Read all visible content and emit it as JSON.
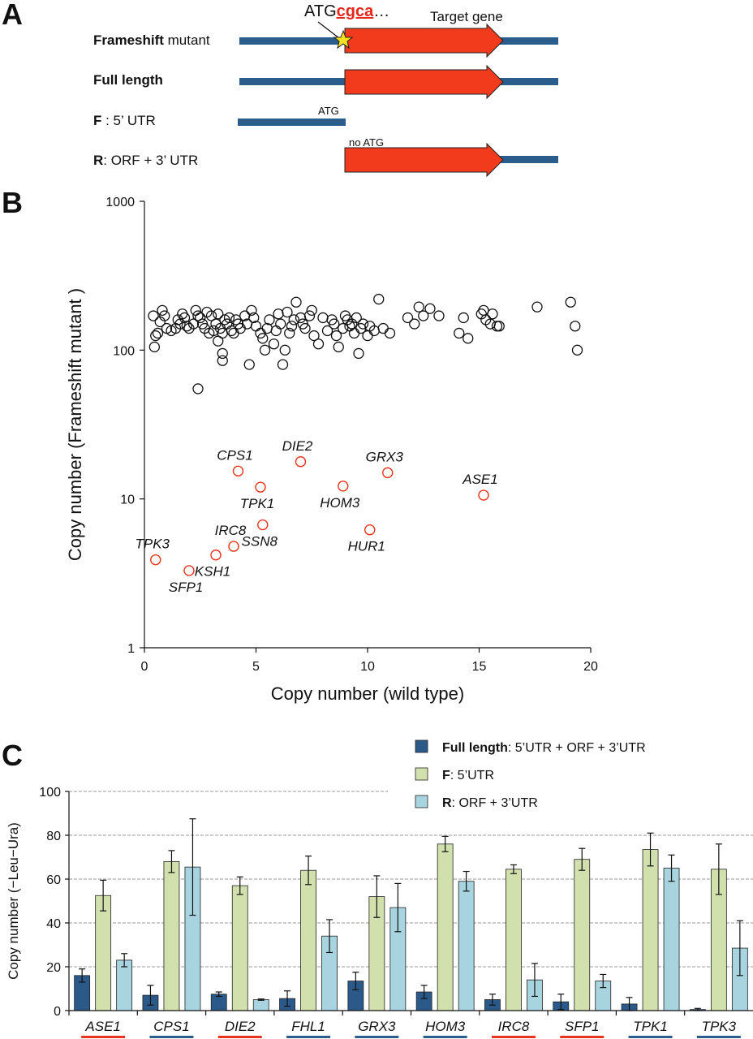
{
  "panel_a": {
    "letter": "A",
    "rows": [
      {
        "bold": "Frameshift",
        "rest": " mutant"
      },
      {
        "bold": "Full length",
        "rest": ""
      },
      {
        "bold": "F",
        "rest": " : 5’ UTR"
      },
      {
        "bold": "R",
        "rest": ": ORF + 3’ UTR"
      }
    ],
    "atg_prefix": "ATG",
    "atg_mut": "cgca",
    "atg_suffix": "…",
    "target_gene": "Target gene",
    "atg_small": "ATG",
    "no_atg": "no ATG",
    "colors": {
      "utr": "#2b5d8c",
      "orf": "#f23a1c",
      "star": "#f7e01d"
    }
  },
  "chart_data": [
    {
      "type": "scatter",
      "panel": "B",
      "xlabel": "Copy number (wild type)",
      "ylabel": "Copy number (Frameshift mutant )",
      "xlim": [
        0,
        20
      ],
      "ylim": [
        1,
        1000
      ],
      "yscale": "log",
      "xticks": [
        "0",
        "5",
        "10",
        "15",
        "20"
      ],
      "yticks": [
        "1",
        "10",
        "100",
        "1000"
      ],
      "background_points": [
        [
          0.4,
          170
        ],
        [
          0.5,
          125
        ],
        [
          0.45,
          105
        ],
        [
          0.7,
          155
        ],
        [
          0.8,
          185
        ],
        [
          0.9,
          170
        ],
        [
          0.6,
          130
        ],
        [
          1.0,
          140
        ],
        [
          1.2,
          135
        ],
        [
          1.4,
          140
        ],
        [
          1.5,
          160
        ],
        [
          1.6,
          150
        ],
        [
          1.7,
          175
        ],
        [
          1.8,
          165
        ],
        [
          1.9,
          145
        ],
        [
          2.0,
          140
        ],
        [
          2.2,
          150
        ],
        [
          2.3,
          185
        ],
        [
          2.4,
          170
        ],
        [
          2.5,
          165
        ],
        [
          2.6,
          150
        ],
        [
          2.7,
          140
        ],
        [
          2.8,
          180
        ],
        [
          2.9,
          130
        ],
        [
          3.0,
          170
        ],
        [
          3.1,
          135
        ],
        [
          3.2,
          150
        ],
        [
          3.3,
          175
        ],
        [
          3.4,
          140
        ],
        [
          3.5,
          130
        ],
        [
          3.6,
          160
        ],
        [
          3.7,
          150
        ],
        [
          3.8,
          165
        ],
        [
          3.9,
          135
        ],
        [
          4.0,
          130
        ],
        [
          4.1,
          160
        ],
        [
          4.2,
          150
        ],
        [
          4.3,
          140
        ],
        [
          3.3,
          115
        ],
        [
          3.5,
          85
        ],
        [
          3.5,
          95
        ],
        [
          2.4,
          55
        ],
        [
          4.5,
          170
        ],
        [
          4.6,
          150
        ],
        [
          4.7,
          80
        ],
        [
          4.8,
          185
        ],
        [
          4.9,
          165
        ],
        [
          5.0,
          145
        ],
        [
          5.2,
          130
        ],
        [
          5.3,
          120
        ],
        [
          5.4,
          100
        ],
        [
          5.5,
          140
        ],
        [
          5.6,
          160
        ],
        [
          5.8,
          110
        ],
        [
          5.9,
          135
        ],
        [
          6.0,
          175
        ],
        [
          6.1,
          150
        ],
        [
          6.2,
          80
        ],
        [
          6.3,
          100
        ],
        [
          6.4,
          180
        ],
        [
          6.5,
          130
        ],
        [
          6.6,
          145
        ],
        [
          6.7,
          160
        ],
        [
          6.8,
          210
        ],
        [
          7.0,
          165
        ],
        [
          7.1,
          150
        ],
        [
          7.2,
          140
        ],
        [
          7.4,
          170
        ],
        [
          7.5,
          185
        ],
        [
          7.6,
          125
        ],
        [
          7.8,
          110
        ],
        [
          8.0,
          165
        ],
        [
          8.2,
          135
        ],
        [
          8.4,
          160
        ],
        [
          8.5,
          150
        ],
        [
          8.6,
          125
        ],
        [
          8.7,
          105
        ],
        [
          8.9,
          140
        ],
        [
          9.0,
          170
        ],
        [
          9.1,
          160
        ],
        [
          9.2,
          145
        ],
        [
          9.3,
          150
        ],
        [
          9.4,
          130
        ],
        [
          9.5,
          165
        ],
        [
          9.6,
          95
        ],
        [
          9.7,
          140
        ],
        [
          9.8,
          150
        ],
        [
          10.0,
          125
        ],
        [
          10.1,
          145
        ],
        [
          10.3,
          135
        ],
        [
          10.5,
          220
        ],
        [
          10.7,
          140
        ],
        [
          11.0,
          130
        ],
        [
          11.8,
          165
        ],
        [
          12.1,
          150
        ],
        [
          12.3,
          195
        ],
        [
          12.5,
          170
        ],
        [
          12.8,
          190
        ],
        [
          13.2,
          170
        ],
        [
          14.1,
          130
        ],
        [
          14.3,
          165
        ],
        [
          14.5,
          120
        ],
        [
          15.1,
          175
        ],
        [
          15.2,
          185
        ],
        [
          15.3,
          160
        ],
        [
          15.5,
          150
        ],
        [
          15.6,
          175
        ],
        [
          15.8,
          145
        ],
        [
          15.9,
          145
        ],
        [
          17.6,
          195
        ],
        [
          19.1,
          210
        ],
        [
          19.3,
          145
        ],
        [
          19.4,
          100
        ]
      ],
      "labeled_points": [
        {
          "name": "CPS1",
          "x": 4.2,
          "y": 15.4,
          "pos": "above"
        },
        {
          "name": "DIE2",
          "x": 7.0,
          "y": 17.8,
          "pos": "above"
        },
        {
          "name": "GRX3",
          "x": 10.9,
          "y": 15.0,
          "pos": "above"
        },
        {
          "name": "TPK1",
          "x": 5.2,
          "y": 12.0,
          "pos": "below"
        },
        {
          "name": "HOM3",
          "x": 8.9,
          "y": 12.2,
          "pos": "below"
        },
        {
          "name": "ASE1",
          "x": 15.2,
          "y": 10.6,
          "pos": "above"
        },
        {
          "name": "IRC8",
          "x": 4.0,
          "y": 4.8,
          "pos": "above"
        },
        {
          "name": "SSN8",
          "x": 5.3,
          "y": 6.7,
          "pos": "below"
        },
        {
          "name": "HUR1",
          "x": 10.1,
          "y": 6.2,
          "pos": "below"
        },
        {
          "name": "TPK3",
          "x": 0.5,
          "y": 3.9,
          "pos": "above"
        },
        {
          "name": "KSH1",
          "x": 3.2,
          "y": 4.2,
          "pos": "below"
        },
        {
          "name": "SFP1",
          "x": 2.0,
          "y": 3.3,
          "pos": "below"
        }
      ],
      "colors": {
        "background": "#111111",
        "labeled": "#e8341c"
      }
    },
    {
      "type": "bar",
      "panel": "C",
      "ylabel": "Copy number (−Leu−Ura)",
      "ylim": [
        0,
        100
      ],
      "yticks": [
        "0",
        "20",
        "40",
        "60",
        "80",
        "100"
      ],
      "categories": [
        "ASE1",
        "CPS1",
        "DIE2",
        "FHL1",
        "GRX3",
        "HOM3",
        "IRC8",
        "SFP1",
        "TPK1",
        "TPK3"
      ],
      "underline_colors": [
        "#e8341c",
        "#2b5d8c",
        "#e8341c",
        "#2b5d8c",
        "#2b5d8c",
        "#2b5d8c",
        "#e8341c",
        "#e8341c",
        "#2b5d8c",
        "#2b5d8c"
      ],
      "series": [
        {
          "name": "Full length",
          "legend_bold": "Full length",
          "legend_rest": ": 5’UTR + ORF + 3’UTR",
          "color": "#2b5a8a",
          "values": [
            16,
            7,
            7.5,
            5.5,
            13.5,
            8.5,
            5,
            4,
            3,
            0.5
          ],
          "errors": [
            3,
            4.5,
            1,
            3.5,
            4,
            3,
            2.5,
            3.5,
            3,
            0.5
          ]
        },
        {
          "name": "F",
          "legend_bold": "F",
          "legend_rest": ": 5’UTR",
          "color": "#d2e0ad",
          "values": [
            52.5,
            68,
            57,
            64,
            52,
            76,
            64.5,
            69,
            73.5,
            64.5
          ],
          "errors": [
            7,
            5,
            4,
            6.5,
            9.5,
            3.5,
            2,
            5,
            7.5,
            11.5
          ]
        },
        {
          "name": "R",
          "legend_bold": "R",
          "legend_rest": ": ORF + 3’UTR",
          "color": "#a8d4e0",
          "values": [
            23,
            65.5,
            5,
            34,
            47,
            59,
            14,
            13.5,
            65,
            28.5
          ],
          "errors": [
            3,
            22,
            0.3,
            7.5,
            11,
            4.5,
            7.5,
            3,
            6,
            12.5
          ]
        }
      ]
    }
  ]
}
